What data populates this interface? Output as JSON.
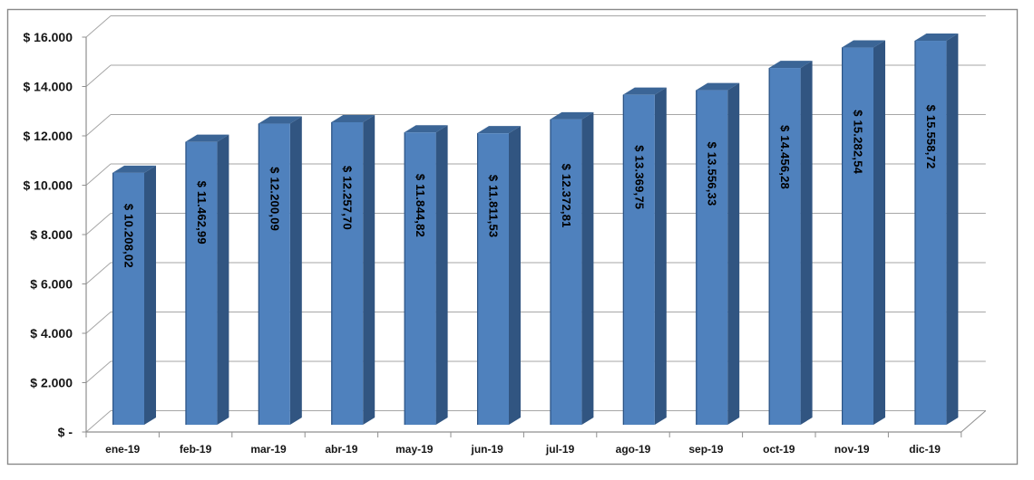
{
  "window": {
    "background": "#ffffff"
  },
  "chart_data": {
    "type": "bar",
    "style": "3d-column",
    "title": "",
    "xlabel": "",
    "ylabel": "",
    "categories": [
      "ene-19",
      "feb-19",
      "mar-19",
      "abr-19",
      "may-19",
      "jun-19",
      "jul-19",
      "ago-19",
      "sep-19",
      "oct-19",
      "nov-19",
      "dic-19"
    ],
    "values": [
      10208.02,
      11462.99,
      12200.09,
      12257.7,
      11844.82,
      11811.53,
      12372.81,
      13369.75,
      13556.33,
      14456.28,
      15282.54,
      15558.72
    ],
    "value_labels": [
      "$ 10.208,02",
      "$ 11.462,99",
      "$ 12.200,09",
      "$ 12.257,70",
      "$ 11.844,82",
      "$ 11.811,53",
      "$ 12.372,81",
      "$ 13.369,75",
      "$ 13.556,33",
      "$ 14.456,28",
      "$ 15.282,54",
      "$ 15.558,72"
    ],
    "y_axis": {
      "min": 0,
      "max": 16000,
      "step": 2000,
      "tick_labels": [
        "$ -",
        "$ 2.000",
        "$ 4.000",
        "$ 6.000",
        "$ 8.000",
        "$ 10.000",
        "$ 12.000",
        "$ 14.000",
        "$ 16.000"
      ]
    },
    "grid": true,
    "legend": false,
    "colors": {
      "bar_front": "#4f81bd",
      "bar_side": "#315581",
      "bar_top": "#3b6596",
      "bar_edge": "#2c5384",
      "gridline": "#a6a6a6",
      "axis_line": "#8f8f8f",
      "frame_border": "#898989",
      "value_label_text": "#000000",
      "axis_label_text": "#161616",
      "background": "#ffffff"
    }
  }
}
